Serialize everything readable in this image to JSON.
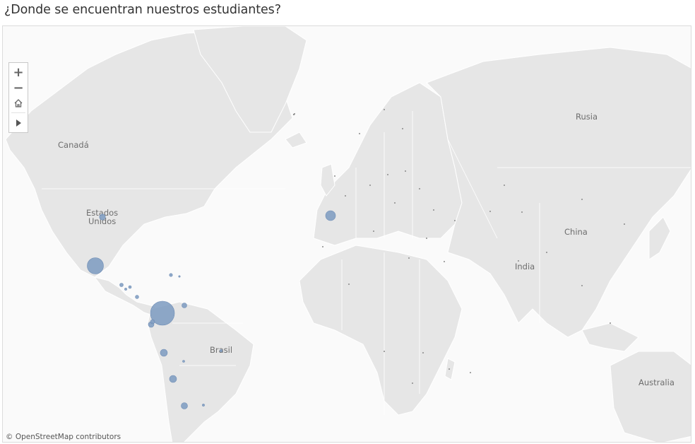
{
  "title": "¿Donde se encuentran nuestros estudiantes?",
  "map": {
    "country_labels": [
      "Canadá",
      "Estados",
      "Unidos",
      "Rusia",
      "China",
      "India",
      "Brasil",
      "Australia"
    ],
    "attribution": "© OpenStreetMap contributors",
    "land_color": "#e6e6e6",
    "border_color": "#ffffff",
    "bubble_color": "#7f9dc2"
  },
  "controls": {
    "zoom_in": "+",
    "zoom_out": "−",
    "home_icon": "home-icon",
    "pan_icon": "play-icon"
  }
}
